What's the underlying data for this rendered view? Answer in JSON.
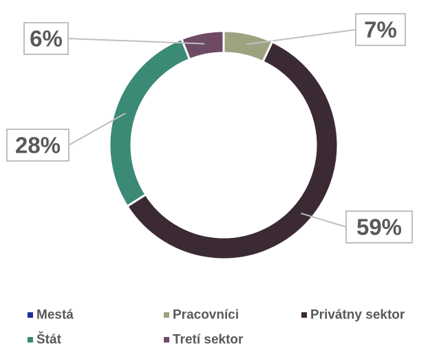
{
  "chart_data": {
    "type": "donut",
    "categories": [
      "Mestá",
      "Pracovníci",
      "Privátny sektor",
      "Štát",
      "Tretí sektor"
    ],
    "values": [
      0,
      7,
      59,
      28,
      6
    ],
    "value_labels": [
      null,
      "7%",
      "59%",
      "28%",
      "6%"
    ],
    "colors": [
      "#1f2f9a",
      "#9ea37f",
      "#3b2a33",
      "#3a8a76",
      "#6e4a65"
    ],
    "legend": "bottom"
  }
}
